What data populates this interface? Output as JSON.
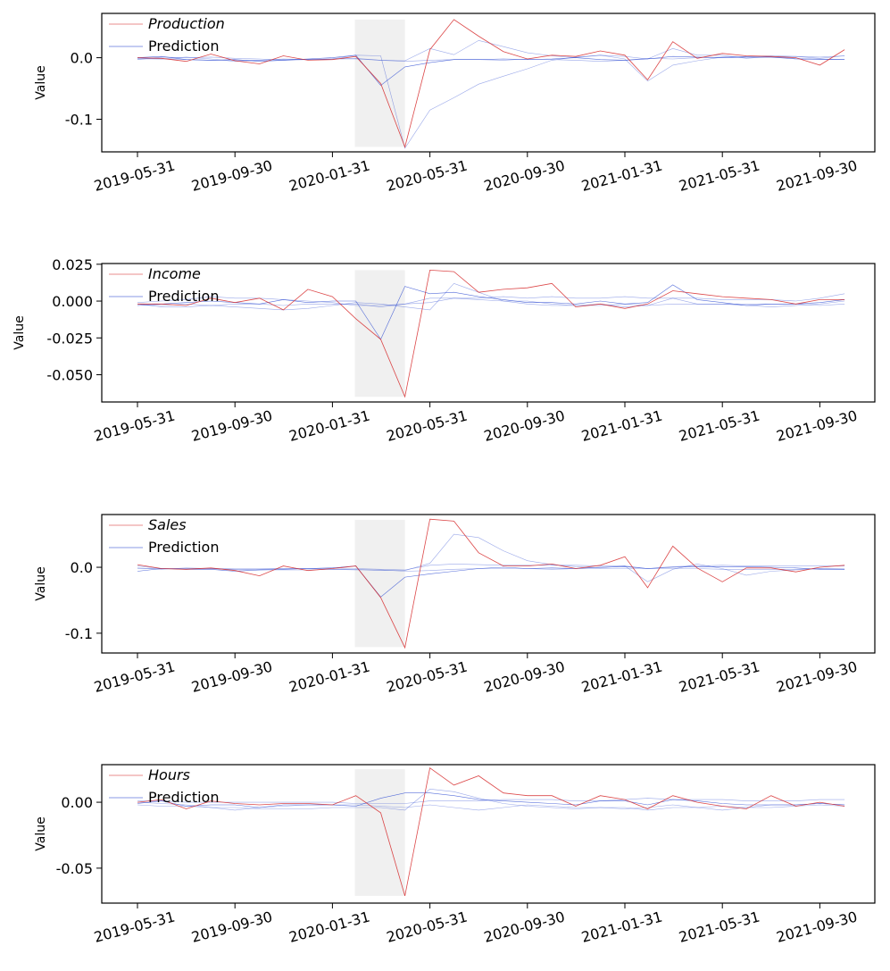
{
  "chart_data": {
    "type": "line",
    "x_ticks": [
      "2019-05-31",
      "2019-09-30",
      "2020-01-31",
      "2020-05-31",
      "2020-09-30",
      "2021-01-31",
      "2021-05-31",
      "2021-09-30"
    ],
    "x_dates": [
      "2019-05-31",
      "2019-06-30",
      "2019-07-31",
      "2019-08-31",
      "2019-09-30",
      "2019-10-31",
      "2019-11-30",
      "2019-12-31",
      "2020-01-31",
      "2020-02-29",
      "2020-03-31",
      "2020-04-30",
      "2020-05-31",
      "2020-06-30",
      "2020-07-31",
      "2020-08-31",
      "2020-09-30",
      "2020-10-31",
      "2020-11-30",
      "2020-12-31",
      "2021-01-31",
      "2021-02-28",
      "2021-03-31",
      "2021-04-30",
      "2021-05-31",
      "2021-06-30",
      "2021-07-31",
      "2021-08-31",
      "2021-09-30",
      "2021-10-31"
    ],
    "shaded_region": [
      "2020-02-29",
      "2020-04-30"
    ],
    "colors": {
      "actual": "#d62728",
      "prediction": "#1f3fcf",
      "shade": "#f0f0f0"
    },
    "panels": [
      {
        "ylabel": "Value",
        "yticks": [
          "0.0",
          "-0.1"
        ],
        "ytick_values": [
          0.0,
          -0.1
        ],
        "ylim": [
          -0.153,
          0.072
        ],
        "shade_range": [
          -0.145,
          0.062
        ],
        "legend": [
          "Production",
          "Prediction"
        ],
        "legend_italic": [
          true,
          false
        ],
        "actual": [
          0.0,
          -0.001,
          -0.006,
          0.006,
          -0.005,
          -0.01,
          0.003,
          -0.004,
          -0.003,
          0.002,
          -0.042,
          -0.145,
          0.013,
          0.062,
          0.035,
          0.01,
          -0.002,
          0.004,
          0.002,
          0.011,
          0.004,
          -0.036,
          0.026,
          -0.001,
          0.007,
          0.003,
          0.002,
          0.0,
          -0.012,
          0.013
        ],
        "predictions": [
          [
            0.0,
            0.002,
            -0.003,
            -0.004,
            -0.003,
            -0.006,
            -0.004,
            -0.002,
            0.0,
            0.004,
            -0.045,
            -0.015,
            -0.008,
            -0.003,
            -0.003,
            -0.002,
            -0.003,
            -0.002,
            0.0,
            -0.003,
            -0.004,
            -0.002,
            0.002,
            0.001,
            0.0,
            0.001,
            0.001,
            -0.002,
            -0.003,
            -0.003
          ],
          [
            -0.002,
            -0.002,
            -0.003,
            -0.004,
            -0.004,
            -0.004,
            -0.003,
            -0.003,
            -0.002,
            -0.002,
            -0.004,
            -0.006,
            -0.004,
            -0.003,
            -0.003,
            -0.004,
            -0.002,
            -0.003,
            -0.004,
            -0.006,
            -0.004,
            -0.001,
            -0.002,
            0.0,
            0.001,
            0.002,
            0.003,
            0.002,
            0.001,
            0.003
          ],
          [
            -0.003,
            0.001,
            0.0,
            0.001,
            -0.001,
            -0.002,
            -0.004,
            -0.003,
            -0.002,
            0.004,
            0.003,
            -0.147,
            -0.085,
            -0.065,
            -0.043,
            -0.03,
            -0.018,
            -0.004,
            0.001,
            0.004,
            -0.002,
            -0.038,
            -0.012,
            -0.005,
            0.001,
            0.001,
            0.001,
            -0.001,
            -0.002,
            -0.003
          ],
          [
            -0.001,
            -0.002,
            0.001,
            -0.002,
            -0.006,
            -0.004,
            -0.002,
            -0.003,
            -0.002,
            -0.001,
            -0.004,
            -0.005,
            0.015,
            0.005,
            0.028,
            0.018,
            0.008,
            0.003,
            0.0,
            0.004,
            0.002,
            -0.002,
            0.015,
            0.004,
            0.004,
            -0.001,
            0.002,
            0.002,
            -0.001,
            0.003
          ]
        ]
      },
      {
        "ylabel": "Value",
        "yticks": [
          "0.025",
          "0.000",
          "-0.025",
          "-0.050"
        ],
        "ytick_values": [
          0.025,
          0.0,
          -0.025,
          -0.05
        ],
        "ylim": [
          -0.0685,
          0.0255
        ],
        "shade_range": [
          -0.065,
          0.021
        ],
        "legend": [
          "Income",
          "Prediction"
        ],
        "legend_italic": [
          true,
          false
        ],
        "actual": [
          -0.002,
          -0.002,
          -0.003,
          0.002,
          -0.001,
          0.002,
          -0.006,
          0.008,
          0.003,
          -0.012,
          -0.026,
          -0.065,
          0.021,
          0.02,
          0.006,
          0.008,
          0.009,
          0.012,
          -0.004,
          -0.002,
          -0.005,
          -0.002,
          0.007,
          0.005,
          0.003,
          0.002,
          0.001,
          -0.002,
          0.001,
          0.001
        ],
        "predictions": [
          [
            -0.003,
            -0.002,
            -0.001,
            0.0,
            -0.001,
            -0.002,
            0.001,
            -0.001,
            0.0,
            0.0,
            -0.026,
            0.01,
            0.005,
            0.006,
            0.003,
            0.001,
            -0.001,
            -0.001,
            -0.002,
            0.0,
            -0.002,
            -0.001,
            0.011,
            0.001,
            -0.001,
            -0.003,
            -0.002,
            -0.002,
            -0.001,
            0.001
          ],
          [
            -0.001,
            0.0,
            0.001,
            0.003,
            0.002,
            0.002,
            0.001,
            0.0,
            -0.001,
            -0.003,
            -0.003,
            -0.002,
            0.002,
            0.002,
            0.002,
            0.003,
            0.002,
            0.003,
            0.002,
            0.002,
            0.003,
            0.002,
            0.002,
            0.002,
            0.001,
            0.001,
            0.001,
            0.0,
            0.002,
            0.005
          ],
          [
            -0.002,
            -0.004,
            -0.004,
            -0.003,
            -0.004,
            -0.005,
            -0.006,
            -0.005,
            -0.003,
            -0.001,
            -0.002,
            -0.004,
            -0.006,
            0.012,
            0.006,
            0.0,
            -0.002,
            -0.003,
            -0.003,
            -0.002,
            -0.004,
            -0.003,
            0.002,
            -0.002,
            -0.002,
            -0.003,
            -0.004,
            -0.003,
            -0.002,
            0.0
          ],
          [
            -0.002,
            -0.003,
            -0.002,
            -0.003,
            -0.002,
            -0.002,
            -0.003,
            -0.002,
            -0.002,
            -0.002,
            -0.004,
            -0.002,
            -0.001,
            0.002,
            0.001,
            0.0,
            0.0,
            -0.002,
            -0.003,
            -0.003,
            -0.002,
            -0.003,
            -0.002,
            -0.002,
            -0.002,
            -0.002,
            -0.002,
            -0.002,
            -0.003,
            -0.002
          ]
        ]
      },
      {
        "ylabel": "Value",
        "yticks": [
          "0.0",
          "-0.1"
        ],
        "ytick_values": [
          0.0,
          -0.1
        ],
        "ylim": [
          -0.13,
          0.08
        ],
        "shade_range": [
          -0.121,
          0.072
        ],
        "legend": [
          "Sales",
          "Prediction"
        ],
        "legend_italic": [
          true,
          false
        ],
        "actual": [
          0.004,
          -0.002,
          -0.003,
          -0.001,
          -0.005,
          -0.013,
          0.002,
          -0.005,
          -0.002,
          0.002,
          -0.046,
          -0.122,
          0.073,
          0.07,
          0.022,
          0.002,
          0.002,
          0.005,
          -0.002,
          0.003,
          0.016,
          -0.031,
          0.032,
          -0.001,
          -0.022,
          -0.001,
          -0.001,
          -0.007,
          0.0,
          0.003
        ],
        "predictions": [
          [
            -0.006,
            -0.002,
            -0.003,
            -0.003,
            -0.006,
            -0.004,
            -0.003,
            -0.002,
            -0.001,
            0.002,
            -0.045,
            -0.015,
            -0.01,
            -0.006,
            -0.002,
            0.0,
            -0.002,
            -0.001,
            -0.002,
            0.0,
            0.001,
            -0.002,
            0.0,
            0.001,
            0.001,
            0.001,
            0.0,
            -0.001,
            -0.003,
            -0.003
          ],
          [
            0.002,
            -0.002,
            -0.002,
            -0.002,
            -0.002,
            -0.002,
            -0.002,
            -0.002,
            -0.001,
            -0.002,
            -0.003,
            -0.004,
            0.003,
            0.005,
            0.004,
            0.003,
            0.003,
            0.003,
            0.003,
            0.002,
            0.002,
            -0.002,
            0.001,
            0.002,
            0.003,
            0.002,
            0.002,
            0.002,
            0.002,
            0.002
          ],
          [
            -0.002,
            -0.002,
            -0.002,
            -0.002,
            -0.004,
            -0.004,
            -0.004,
            -0.004,
            -0.003,
            -0.003,
            -0.005,
            -0.005,
            0.006,
            0.05,
            0.045,
            0.025,
            0.01,
            0.004,
            0.001,
            -0.001,
            0.002,
            -0.022,
            -0.003,
            0.005,
            -0.002,
            -0.012,
            -0.006,
            -0.004,
            -0.002,
            -0.003
          ],
          [
            -0.001,
            -0.003,
            -0.001,
            -0.002,
            -0.003,
            -0.003,
            -0.002,
            -0.002,
            -0.003,
            -0.004,
            -0.004,
            -0.006,
            -0.005,
            -0.003,
            -0.002,
            -0.002,
            -0.002,
            -0.003,
            -0.002,
            -0.002,
            -0.002,
            -0.002,
            -0.002,
            -0.002,
            -0.003,
            -0.003,
            -0.003,
            -0.003,
            -0.002,
            -0.002
          ]
        ]
      },
      {
        "ylabel": "Value",
        "yticks": [
          "0.00",
          "-0.05"
        ],
        "ytick_values": [
          0.0,
          -0.05
        ],
        "ylim": [
          -0.0765,
          0.0285
        ],
        "shade_range": [
          -0.071,
          0.025
        ],
        "legend": [
          "Hours",
          "Prediction"
        ],
        "legend_italic": [
          true,
          false
        ],
        "actual": [
          0.0,
          0.002,
          -0.005,
          0.001,
          -0.001,
          -0.002,
          -0.001,
          -0.001,
          -0.002,
          0.005,
          -0.008,
          -0.071,
          0.026,
          0.013,
          0.02,
          0.007,
          0.005,
          0.005,
          -0.003,
          0.005,
          0.002,
          -0.005,
          0.005,
          0.0,
          -0.003,
          -0.005,
          0.005,
          -0.003,
          0.0,
          -0.003
        ],
        "predictions": [
          [
            -0.001,
            0.001,
            -0.003,
            -0.002,
            -0.002,
            -0.004,
            -0.002,
            -0.002,
            -0.002,
            -0.003,
            0.003,
            0.007,
            0.007,
            0.005,
            0.002,
            0.001,
            0.0,
            -0.001,
            -0.002,
            0.001,
            0.001,
            -0.002,
            0.002,
            0.001,
            -0.001,
            -0.002,
            -0.002,
            -0.002,
            -0.001,
            -0.002
          ],
          [
            0.001,
            0.001,
            0.0,
            0.0,
            0.0,
            0.0,
            0.0,
            0.0,
            0.0,
            -0.001,
            -0.001,
            -0.001,
            0.001,
            0.001,
            0.001,
            0.002,
            0.002,
            0.002,
            0.001,
            0.001,
            0.002,
            0.003,
            0.002,
            0.002,
            0.002,
            0.001,
            0.001,
            0.001,
            0.002,
            0.002
          ],
          [
            -0.002,
            -0.003,
            -0.003,
            -0.004,
            -0.004,
            -0.005,
            -0.005,
            -0.005,
            -0.004,
            -0.004,
            -0.004,
            -0.006,
            0.01,
            0.008,
            0.003,
            -0.001,
            -0.003,
            -0.004,
            -0.005,
            -0.004,
            -0.004,
            -0.006,
            -0.004,
            -0.004,
            -0.003,
            -0.004,
            -0.004,
            -0.003,
            -0.002,
            -0.003
          ],
          [
            0.0,
            -0.001,
            -0.002,
            -0.004,
            -0.006,
            -0.004,
            -0.003,
            -0.002,
            -0.002,
            -0.002,
            -0.003,
            -0.004,
            -0.002,
            -0.004,
            -0.006,
            -0.004,
            -0.002,
            -0.003,
            -0.004,
            -0.004,
            -0.005,
            -0.004,
            -0.002,
            -0.004,
            -0.006,
            -0.004,
            -0.002,
            -0.002,
            -0.001,
            -0.002
          ]
        ]
      }
    ]
  }
}
